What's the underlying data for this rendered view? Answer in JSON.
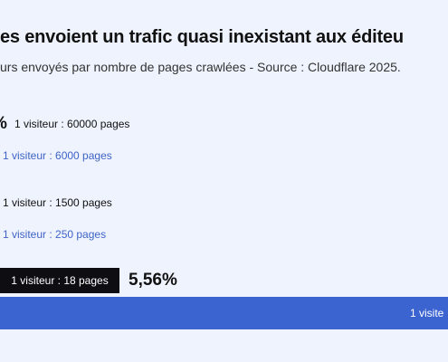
{
  "chart_data": {
    "type": "bar",
    "orientation": "horizontal",
    "title": "es envoient un trafic quasi inexistant aux éditeu",
    "subtitle": "urs envoyés par nombre de pages crawlées - Source : Cloudflare 2025.",
    "rows": [
      {
        "label": "1 visiteur : 60000 pages",
        "pct_label": "%",
        "color": "#0d0d12"
      },
      {
        "label": "1 visiteur : 6000 pages",
        "color": "#3c64d1"
      },
      {
        "label": "1 visiteur : 1500 pages",
        "color": "#0d0d12"
      },
      {
        "label": "1 visiteur : 250 pages",
        "color": "#3c64d1"
      },
      {
        "label": "1 visiteur : 18 pages",
        "pct_label": "5,56%",
        "color": "#0d0d12"
      },
      {
        "label": "1 visite",
        "color": "#3c64d1"
      }
    ]
  }
}
